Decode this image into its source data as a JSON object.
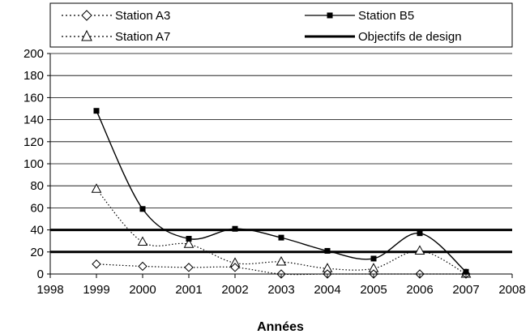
{
  "chart_data": {
    "type": "line",
    "title": "",
    "xlabel": "Années",
    "ylabel": "",
    "xlim": [
      1998,
      2008
    ],
    "ylim": [
      0,
      200
    ],
    "x_ticks": [
      "1998",
      "1999",
      "2000",
      "2001",
      "2002",
      "2003",
      "2004",
      "2005",
      "2006",
      "2007",
      "2008"
    ],
    "y_ticks": [
      "0",
      "20",
      "40",
      "60",
      "80",
      "100",
      "120",
      "140",
      "160",
      "180",
      "200"
    ],
    "grid": "horizontal major lines every 20",
    "legend_placement": "top, above plot",
    "x": [
      1999,
      2000,
      2001,
      2002,
      2003,
      2004,
      2005,
      2006,
      2007
    ],
    "series": [
      {
        "name": "Station A3",
        "style": "dotted",
        "marker": "diamond-open",
        "values": [
          9,
          7,
          6,
          6,
          0,
          0,
          0,
          0,
          0
        ]
      },
      {
        "name": "Station B5",
        "style": "solid",
        "marker": "square-filled",
        "values": [
          148,
          59,
          32,
          41,
          33,
          21,
          14,
          37,
          2
        ]
      },
      {
        "name": "Station A7",
        "style": "dotted",
        "marker": "triangle-open",
        "values": [
          77,
          29,
          27,
          10,
          11,
          5,
          5,
          21,
          0
        ]
      }
    ],
    "reference_lines": {
      "name": "Objectifs de design",
      "values": [
        20,
        40
      ]
    }
  }
}
